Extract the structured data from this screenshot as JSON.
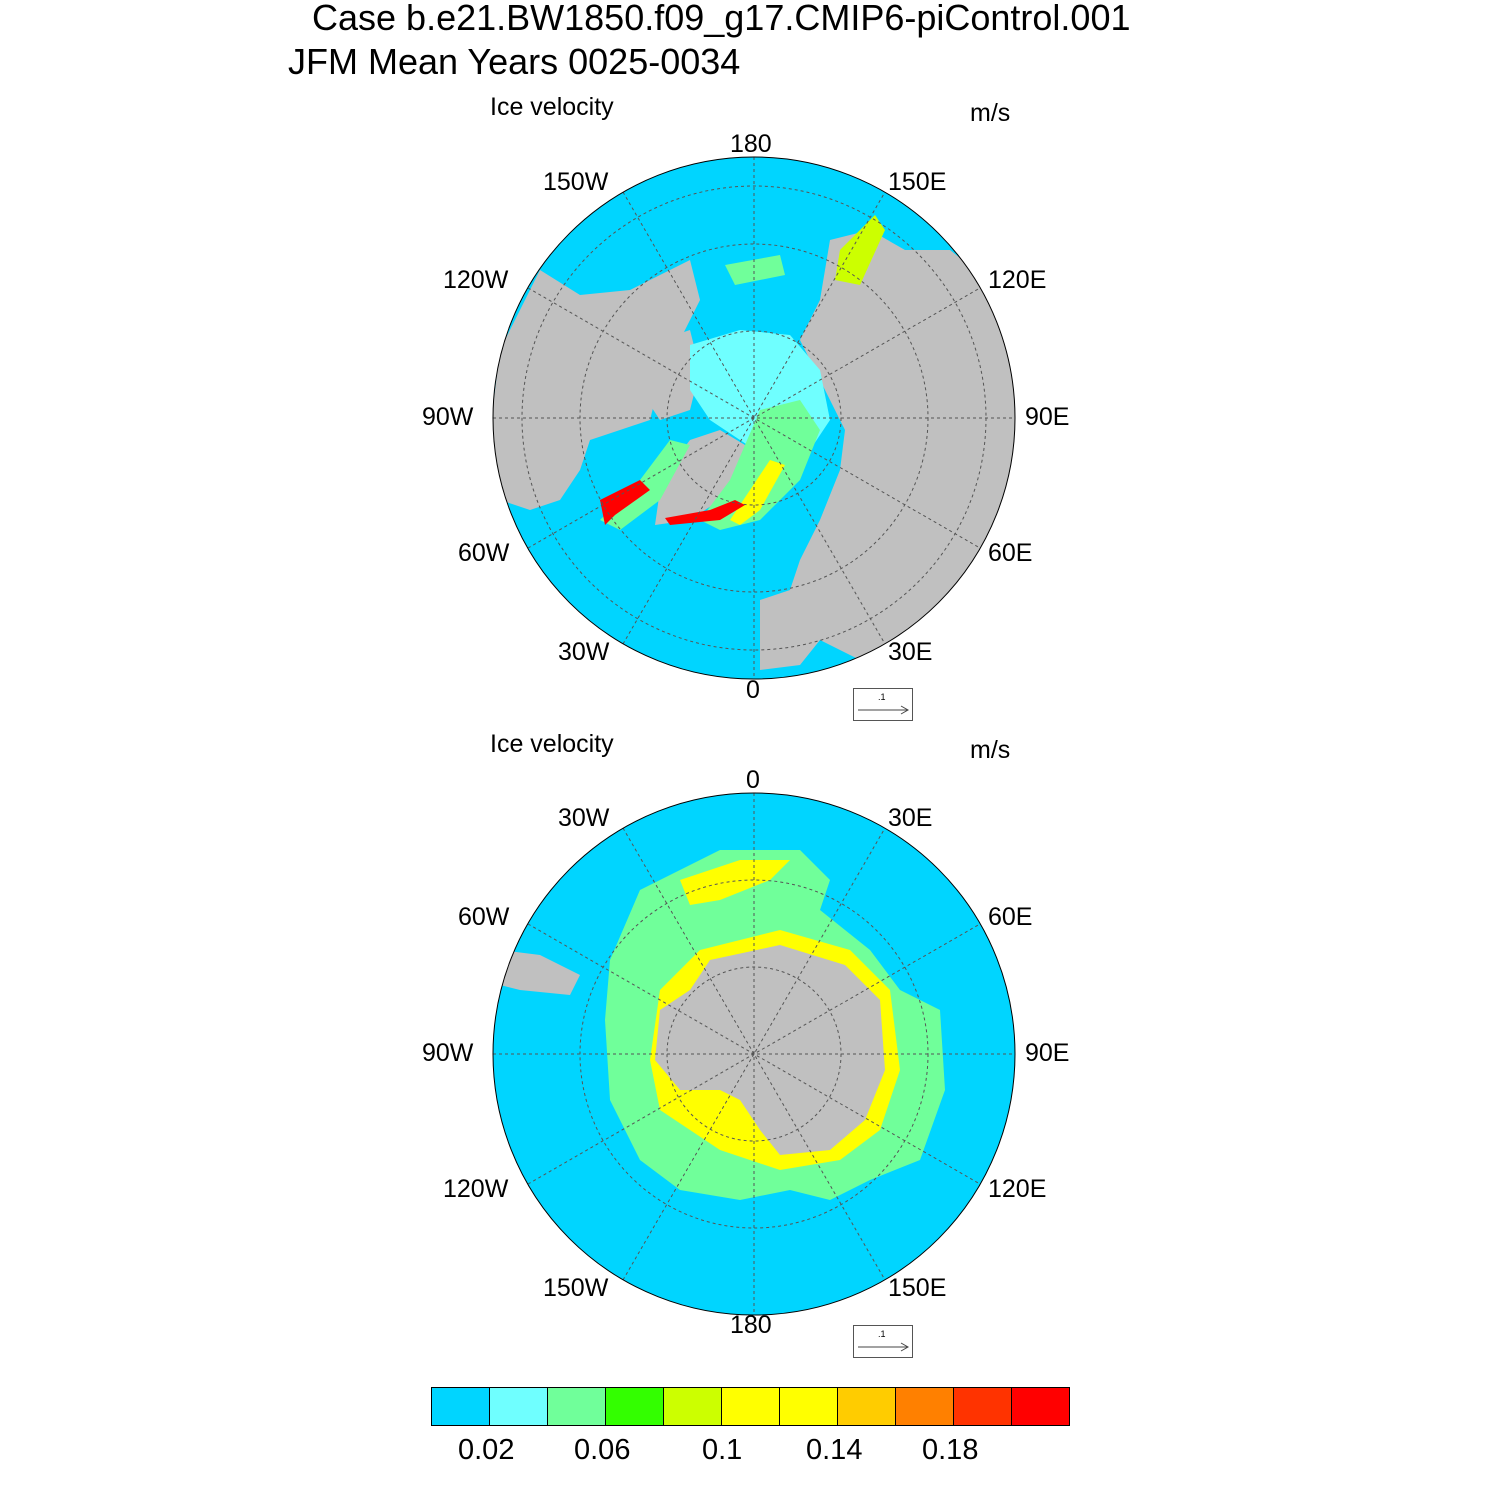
{
  "title": {
    "line1": "Case b.e21.BW1850.f09_g17.CMIP6-piControl.001",
    "line2": "JFM Mean   Years 0025-0034"
  },
  "panels": [
    {
      "hemisphere": "north",
      "label": "Ice velocity",
      "units": "m/s",
      "center_value": "North Pole",
      "longitude_labels": [
        "180",
        "150E",
        "120E",
        "90E",
        "60E",
        "30E",
        "0",
        "30W",
        "60W",
        "90W",
        "120W",
        "150W"
      ],
      "reference_vector": ".1",
      "colors": {
        "ocean": "#00d5ff",
        "land": "#c0c0c0"
      }
    },
    {
      "hemisphere": "south",
      "label": "Ice velocity",
      "units": "m/s",
      "longitude_labels": [
        "0",
        "30E",
        "60E",
        "90E",
        "120E",
        "150E",
        "180",
        "150W",
        "120W",
        "90W",
        "60W",
        "30W"
      ],
      "reference_vector": ".1",
      "colors": {
        "ocean": "#00d5ff",
        "land": "#c0c0c0"
      }
    }
  ],
  "colorbar": {
    "colors": [
      "#00d5ff",
      "#6fffff",
      "#70ff9a",
      "#33ff00",
      "#ccff00",
      "#ffff00",
      "#ffff00",
      "#ffcc00",
      "#ff8000",
      "#ff3300",
      "#ff0000"
    ],
    "labels": [
      "0.02",
      "0.06",
      "0.1",
      "0.14",
      "0.18"
    ]
  }
}
